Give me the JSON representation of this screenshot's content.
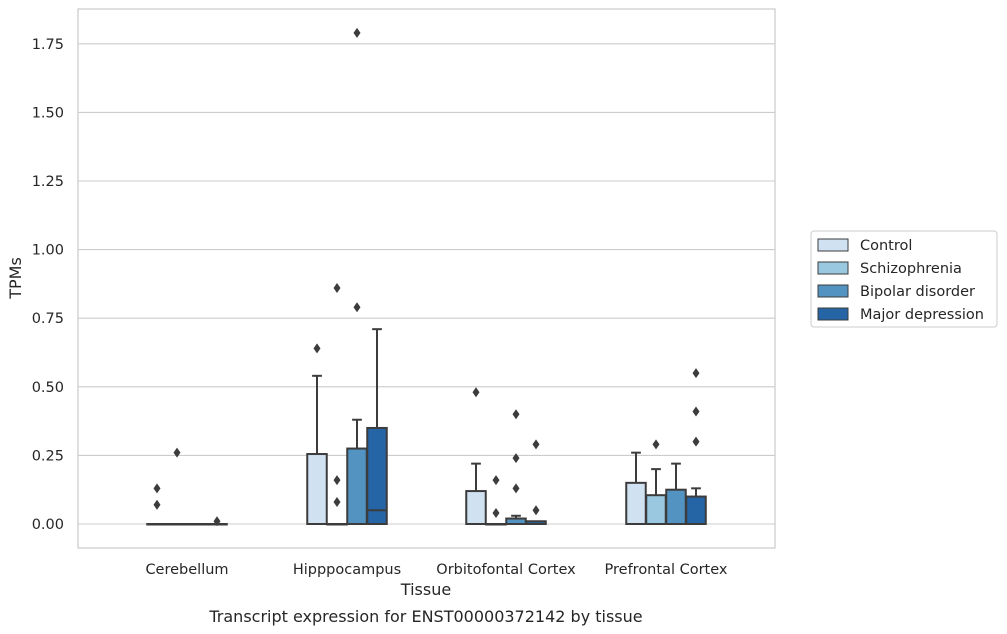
{
  "chart_data": {
    "type": "box",
    "caption": "Transcript expression for ENST00000372142 by tissue",
    "xlabel": "Tissue",
    "ylabel": "TPMs",
    "ylim": [
      -0.085,
      1.88
    ],
    "yticks": [
      "0.00",
      "0.25",
      "0.50",
      "0.75",
      "1.00",
      "1.25",
      "1.50",
      "1.75"
    ],
    "grid": "horizontal",
    "legend_position": "right",
    "categories": [
      "Cerebellum",
      "Hipppocampus",
      "Orbitofontal Cortex",
      "Prefrontal Cortex"
    ],
    "series": [
      {
        "name": "Control",
        "color": "#d0e1f2",
        "boxes": [
          {
            "q1": 0,
            "median": 0,
            "q3": 0,
            "whisker_low": 0,
            "whisker_high": 0,
            "outliers": [
              0.07,
              0.13
            ]
          },
          {
            "q1": 0,
            "median": 0,
            "q3": 0.255,
            "whisker_low": 0,
            "whisker_high": 0.54,
            "outliers": [
              0.64
            ]
          },
          {
            "q1": 0,
            "median": 0,
            "q3": 0.12,
            "whisker_low": 0,
            "whisker_high": 0.22,
            "outliers": [
              0.48
            ]
          },
          {
            "q1": 0,
            "median": 0,
            "q3": 0.15,
            "whisker_low": 0,
            "whisker_high": 0.26,
            "outliers": []
          }
        ]
      },
      {
        "name": "Schizophrenia",
        "color": "#9ac8e0",
        "boxes": [
          {
            "q1": 0,
            "median": 0,
            "q3": 0,
            "whisker_low": 0,
            "whisker_high": 0,
            "outliers": [
              0.26
            ]
          },
          {
            "q1": 0,
            "median": 0,
            "q3": 0,
            "whisker_low": 0,
            "whisker_high": 0,
            "outliers": [
              0.08,
              0.16,
              0.86
            ]
          },
          {
            "q1": 0,
            "median": 0,
            "q3": 0,
            "whisker_low": 0,
            "whisker_high": 0,
            "outliers": [
              0.04,
              0.16
            ]
          },
          {
            "q1": 0,
            "median": 0,
            "q3": 0.105,
            "whisker_low": 0,
            "whisker_high": 0.2,
            "outliers": [
              0.29
            ]
          }
        ]
      },
      {
        "name": "Bipolar disorder",
        "color": "#5393c2",
        "boxes": [
          {
            "q1": 0,
            "median": 0,
            "q3": 0,
            "whisker_low": 0,
            "whisker_high": 0,
            "outliers": []
          },
          {
            "q1": 0,
            "median": 0,
            "q3": 0.275,
            "whisker_low": 0,
            "whisker_high": 0.38,
            "outliers": [
              0.79,
              1.79
            ]
          },
          {
            "q1": 0,
            "median": 0,
            "q3": 0.02,
            "whisker_low": 0,
            "whisker_high": 0.03,
            "outliers": [
              0.13,
              0.24,
              0.4
            ]
          },
          {
            "q1": 0,
            "median": 0,
            "q3": 0.125,
            "whisker_low": 0,
            "whisker_high": 0.22,
            "outliers": []
          }
        ]
      },
      {
        "name": "Major depression",
        "color": "#2565a5",
        "boxes": [
          {
            "q1": 0,
            "median": 0,
            "q3": 0,
            "whisker_low": 0,
            "whisker_high": 0,
            "outliers": [
              0.01
            ]
          },
          {
            "q1": 0,
            "median": 0.05,
            "q3": 0.35,
            "whisker_low": 0,
            "whisker_high": 0.71,
            "outliers": []
          },
          {
            "q1": 0,
            "median": 0,
            "q3": 0.01,
            "whisker_low": 0,
            "whisker_high": 0.01,
            "outliers": [
              0.05,
              0.29
            ]
          },
          {
            "q1": 0,
            "median": 0,
            "q3": 0.1,
            "whisker_low": 0,
            "whisker_high": 0.13,
            "outliers": [
              0.3,
              0.41,
              0.55
            ]
          }
        ]
      }
    ]
  }
}
